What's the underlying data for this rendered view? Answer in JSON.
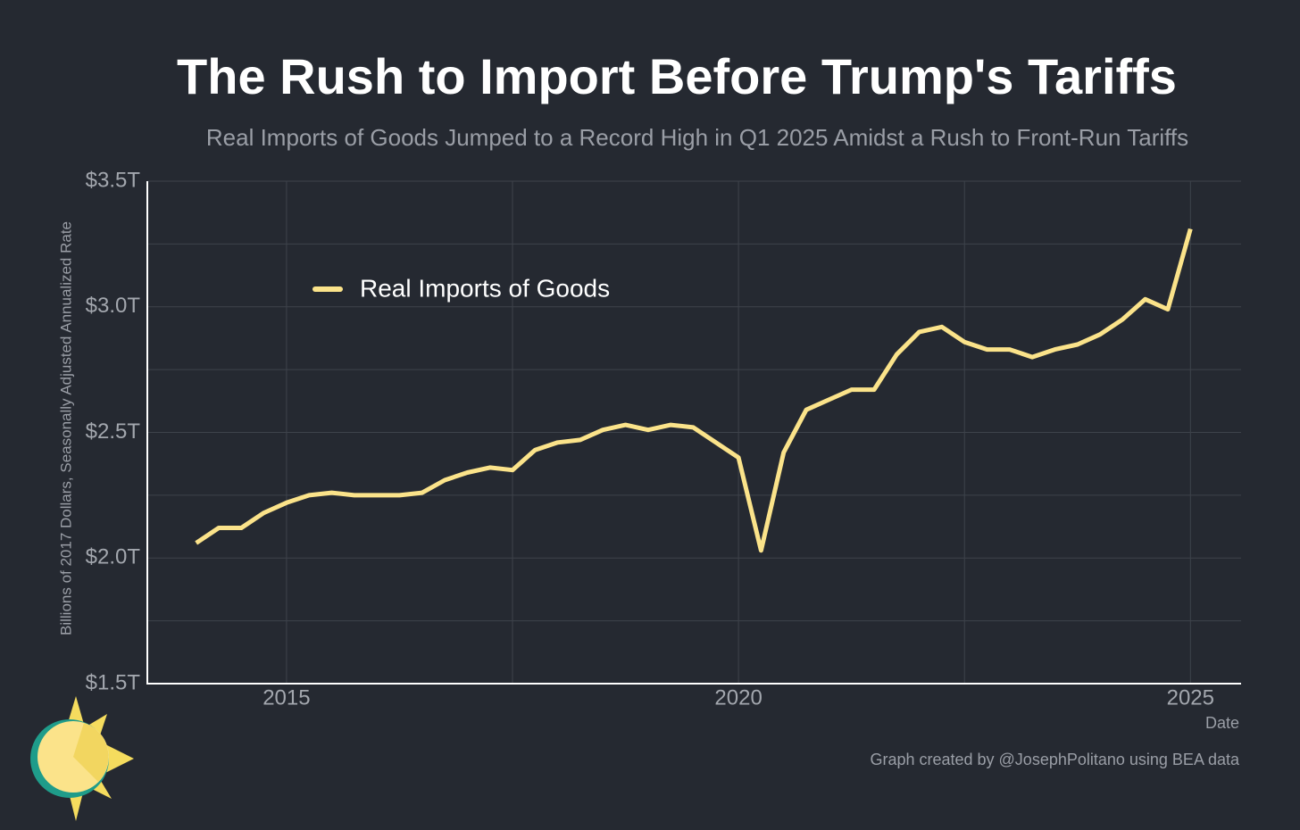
{
  "chart_data": {
    "type": "line",
    "title": "The Rush to Import Before Trump's Tariffs",
    "subtitle": "Real Imports of Goods Jumped to a Record High in Q1 2025 Amidst a Rush to Front-Run Tariffs",
    "y_label": "Billions of 2017 Dollars, Seasonally Adjusted Annualized Rate",
    "x_label": "Date",
    "credit": "Graph created by @JosephPolitano using BEA data",
    "x": [
      2014,
      2014.25,
      2014.5,
      2014.75,
      2015,
      2015.25,
      2015.5,
      2015.75,
      2016,
      2016.25,
      2016.5,
      2016.75,
      2017,
      2017.25,
      2017.5,
      2017.75,
      2018,
      2018.25,
      2018.5,
      2018.75,
      2019,
      2019.25,
      2019.5,
      2019.75,
      2020,
      2020.25,
      2020.5,
      2020.75,
      2021,
      2021.25,
      2021.5,
      2021.75,
      2022,
      2022.25,
      2022.5,
      2022.75,
      2023,
      2023.25,
      2023.5,
      2023.75,
      2024,
      2024.25,
      2024.5,
      2024.75,
      2025
    ],
    "series": [
      {
        "name": "Real Imports of Goods",
        "color": "#fbe38a",
        "values": [
          2.06,
          2.12,
          2.12,
          2.18,
          2.22,
          2.25,
          2.26,
          2.25,
          2.25,
          2.25,
          2.26,
          2.31,
          2.34,
          2.36,
          2.35,
          2.43,
          2.46,
          2.47,
          2.51,
          2.53,
          2.51,
          2.53,
          2.52,
          2.46,
          2.4,
          2.03,
          2.42,
          2.59,
          2.63,
          2.67,
          2.67,
          2.81,
          2.9,
          2.92,
          2.86,
          2.83,
          2.83,
          2.8,
          2.83,
          2.85,
          2.89,
          2.95,
          3.03,
          2.99,
          3.31
        ]
      }
    ],
    "xlim": [
      2013.46,
      2025.56
    ],
    "xticks": [
      2015,
      2020,
      2025
    ],
    "xminor": [
      2017.5,
      2022.5
    ],
    "ylim": [
      1.5,
      3.5
    ],
    "yticks": [
      {
        "value": 1.5,
        "label": "$1.5T"
      },
      {
        "value": 2.0,
        "label": "$2.0T"
      },
      {
        "value": 2.5,
        "label": "$2.5T"
      },
      {
        "value": 3.0,
        "label": "$3.0T"
      },
      {
        "value": 3.5,
        "label": "$3.5T"
      }
    ],
    "yminor": [
      1.75,
      2.25,
      2.75,
      3.25
    ],
    "grid": true
  }
}
